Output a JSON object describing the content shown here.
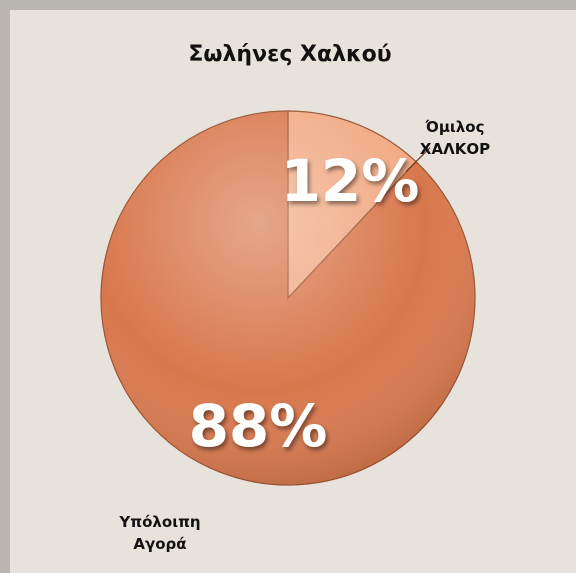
{
  "chart_data": {
    "type": "pie",
    "title": "Σωλήνες Χαλκού",
    "categories": [
      "Όμιλος ΧΑΛΚΟΡ",
      "Υπόλοιπη Αγορά"
    ],
    "values": [
      12,
      88
    ],
    "value_labels": [
      "12%",
      "88%"
    ],
    "colors": [
      "#f1aa84",
      "#d8774c"
    ]
  }
}
